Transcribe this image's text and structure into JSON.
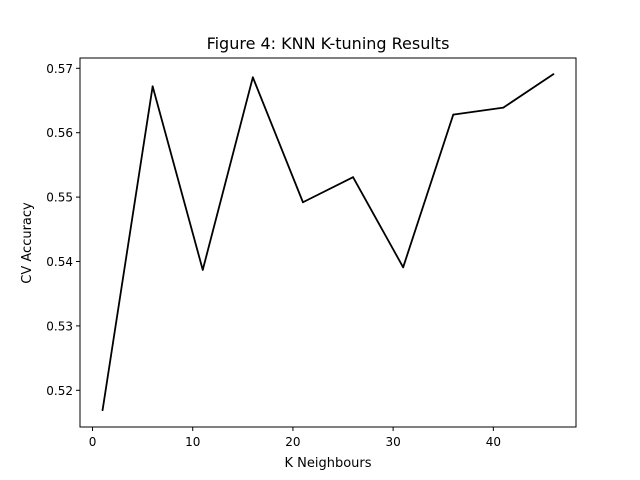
{
  "chart_data": {
    "type": "line",
    "title": "Figure 4: KNN K-tuning Results",
    "xlabel": "K Neighbours",
    "ylabel": "CV Accuracy",
    "xlim": [
      -1.25,
      48.25
    ],
    "ylim": [
      0.5143,
      0.5716
    ],
    "xticks": [
      0,
      10,
      20,
      30,
      40
    ],
    "xtick_labels": [
      "0",
      "10",
      "20",
      "30",
      "40"
    ],
    "yticks": [
      0.52,
      0.53,
      0.54,
      0.55,
      0.56,
      0.57
    ],
    "ytick_labels": [
      "0.52",
      "0.53",
      "0.54",
      "0.55",
      "0.56",
      "0.57"
    ],
    "grid": false,
    "series": [
      {
        "color": "#000000",
        "x": [
          1,
          6,
          11,
          16,
          21,
          26,
          31,
          36,
          41,
          46
        ],
        "y": [
          0.5169,
          0.5672,
          0.5387,
          0.5686,
          0.5492,
          0.5531,
          0.5391,
          0.5628,
          0.5639,
          0.5691
        ]
      }
    ]
  }
}
